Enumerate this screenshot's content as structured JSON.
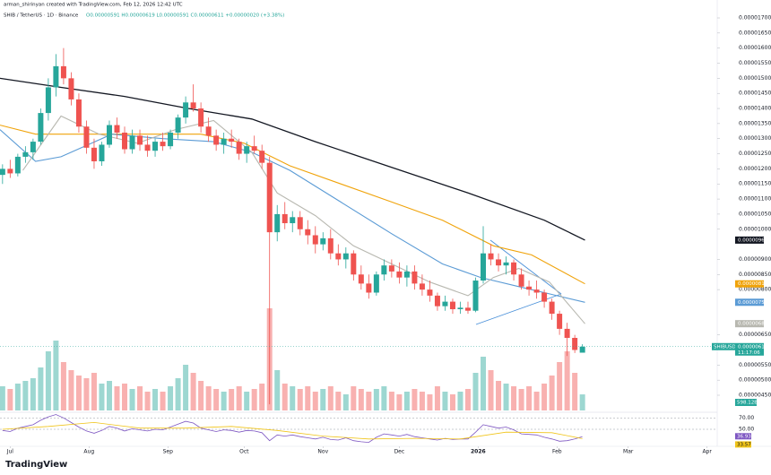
{
  "chart_data": {
    "type": "candlestick",
    "credit": "arman_shirinyan created with TradingView.com, Feb 12, 2026 12:42 UTC",
    "title": "SHIB / TetherUS · 1D · Binance",
    "ohlc": "O0.00000591 H0.00000619 L0.00000591 C0.00000611 +0.00000020 (+3.38%)",
    "brand": "TradingView",
    "symbol_tag": "SHIBUSDT",
    "countdown": "11:17:06",
    "up_color": "#26a69a",
    "down_color": "#ef5350",
    "xlim": [
      -4,
      278
    ],
    "xticks": [
      {
        "value": 0,
        "label": "Jul"
      },
      {
        "value": 31,
        "label": "Aug"
      },
      {
        "value": 62,
        "label": "Sep"
      },
      {
        "value": 92,
        "label": "Oct"
      },
      {
        "value": 123,
        "label": "Nov"
      },
      {
        "value": 153,
        "label": "Dec"
      },
      {
        "value": 184,
        "label": "2026"
      },
      {
        "value": 215,
        "label": "Feb"
      },
      {
        "value": 243,
        "label": "Mar"
      },
      {
        "value": 274,
        "label": "Apr"
      }
    ],
    "ylim": [
      4.5e-06,
      1.7e-05
    ],
    "yticks": [
      {
        "value": 1.7e-05,
        "label": "0.00001700"
      },
      {
        "value": 1.65e-05,
        "label": "0.00001650"
      },
      {
        "value": 1.6e-05,
        "label": "0.00001600"
      },
      {
        "value": 1.55e-05,
        "label": "0.00001550"
      },
      {
        "value": 1.5e-05,
        "label": "0.00001500"
      },
      {
        "value": 1.45e-05,
        "label": "0.00001450"
      },
      {
        "value": 1.4e-05,
        "label": "0.00001400"
      },
      {
        "value": 1.35e-05,
        "label": "0.00001350"
      },
      {
        "value": 1.3e-05,
        "label": "0.00001300"
      },
      {
        "value": 1.25e-05,
        "label": "0.00001250"
      },
      {
        "value": 1.2e-05,
        "label": "0.00001200"
      },
      {
        "value": 1.15e-05,
        "label": "0.00001150"
      },
      {
        "value": 1.1e-05,
        "label": "0.00001100"
      },
      {
        "value": 1.05e-05,
        "label": "0.00001050"
      },
      {
        "value": 1e-05,
        "label": "0.00001000"
      },
      {
        "value": 9e-06,
        "label": "0.00000900"
      },
      {
        "value": 8.5e-06,
        "label": "0.00000850"
      },
      {
        "value": 8e-06,
        "label": "0.00000800"
      },
      {
        "value": 6.5e-06,
        "label": "0.00000650"
      },
      {
        "value": 5.5e-06,
        "label": "0.00000550"
      },
      {
        "value": 5e-06,
        "label": "0.00000500"
      },
      {
        "value": 4.5e-06,
        "label": "0.00000450"
      }
    ],
    "x": [
      -3,
      0,
      3,
      6,
      9,
      12,
      15,
      18,
      21,
      24,
      27,
      30,
      33,
      36,
      39,
      42,
      45,
      48,
      51,
      54,
      57,
      60,
      63,
      66,
      69,
      72,
      75,
      78,
      81,
      84,
      87,
      90,
      93,
      96,
      99,
      102,
      105,
      108,
      111,
      114,
      117,
      120,
      123,
      126,
      129,
      132,
      135,
      138,
      141,
      144,
      147,
      150,
      153,
      156,
      159,
      162,
      165,
      168,
      171,
      174,
      177,
      180,
      183,
      186,
      189,
      192,
      195,
      198,
      201,
      204,
      207,
      210,
      213,
      216,
      219,
      222,
      225
    ],
    "open": [
      1.18e-05,
      1.2e-05,
      1.185e-05,
      1.24e-05,
      1.255e-05,
      1.29e-05,
      1.385e-05,
      1.47e-05,
      1.54e-05,
      1.5e-05,
      1.43e-05,
      1.34e-05,
      1.27e-05,
      1.225e-05,
      1.28e-05,
      1.345e-05,
      1.32e-05,
      1.265e-05,
      1.31e-05,
      1.28e-05,
      1.26e-05,
      1.29e-05,
      1.275e-05,
      1.32e-05,
      1.37e-05,
      1.42e-05,
      1.4e-05,
      1.34e-05,
      1.31e-05,
      1.28e-05,
      1.3e-05,
      1.29e-05,
      1.25e-05,
      1.275e-05,
      1.26e-05,
      1.22e-05,
      9.9e-06,
      1.05e-05,
      1.02e-05,
      1.04e-05,
      1e-05,
      9.8e-06,
      9.5e-06,
      9.7e-06,
      9.2e-06,
      9e-06,
      9.2e-06,
      8.5e-06,
      8.2e-06,
      7.9e-06,
      8.5e-06,
      8.8e-06,
      8.6e-06,
      8.4e-06,
      8.6e-06,
      8.2e-06,
      8e-06,
      7.8e-06,
      7.45e-06,
      7.6e-06,
      7.35e-06,
      7.4e-06,
      7.3e-06,
      8.3e-06,
      9.2e-06,
      9e-06,
      8.8e-06,
      8.9e-06,
      8.5e-06,
      8.1e-06,
      8e-06,
      7.9e-06,
      7.6e-06,
      7.2e-06,
      6.7e-06,
      6.4e-06,
      5.91e-06
    ],
    "high": [
      1.215e-05,
      1.23e-05,
      1.25e-05,
      1.275e-05,
      1.3e-05,
      1.4e-05,
      1.5e-05,
      1.58e-05,
      1.6e-05,
      1.52e-05,
      1.45e-05,
      1.36e-05,
      1.3e-05,
      1.29e-05,
      1.36e-05,
      1.37e-05,
      1.34e-05,
      1.33e-05,
      1.33e-05,
      1.31e-05,
      1.3e-05,
      1.32e-05,
      1.33e-05,
      1.38e-05,
      1.44e-05,
      1.48e-05,
      1.42e-05,
      1.37e-05,
      1.33e-05,
      1.32e-05,
      1.33e-05,
      1.3e-05,
      1.29e-05,
      1.31e-05,
      1.28e-05,
      1.24e-05,
      1.08e-05,
      1.09e-05,
      1.06e-05,
      1.06e-05,
      1.03e-05,
      1.01e-05,
      9.9e-06,
      1e-05,
      9.5e-06,
      9.4e-06,
      9.3e-06,
      8.8e-06,
      8.5e-06,
      8.6e-06,
      9e-06,
      9e-06,
      8.9e-06,
      8.8e-06,
      8.8e-06,
      8.5e-06,
      8.3e-06,
      7.9e-06,
      7.8e-06,
      7.7e-06,
      7.6e-06,
      7.6e-06,
      8.4e-06,
      1.01e-05,
      9.5e-06,
      9.2e-06,
      9.1e-06,
      9e-06,
      8.7e-06,
      8.3e-06,
      8.3e-06,
      8e-06,
      7.7e-06,
      7.3e-06,
      6.9e-06,
      6.5e-06,
      6.19e-06
    ],
    "low": [
      1.15e-05,
      1.17e-05,
      1.175e-05,
      1.22e-05,
      1.23e-05,
      1.28e-05,
      1.36e-05,
      1.44e-05,
      1.48e-05,
      1.41e-05,
      1.32e-05,
      1.25e-05,
      1.2e-05,
      1.21e-05,
      1.27e-05,
      1.3e-05,
      1.25e-05,
      1.25e-05,
      1.26e-05,
      1.24e-05,
      1.24e-05,
      1.26e-05,
      1.265e-05,
      1.3e-05,
      1.35e-05,
      1.39e-05,
      1.32e-05,
      1.29e-05,
      1.26e-05,
      1.25e-05,
      1.27e-05,
      1.23e-05,
      1.22e-05,
      1.25e-05,
      1.2e-05,
      4.2e-06,
      9.6e-06,
      1e-05,
      9.9e-06,
      9.8e-06,
      9.5e-06,
      9.2e-06,
      9.3e-06,
      9e-06,
      8.8e-06,
      8.7e-06,
      8.3e-06,
      8e-06,
      7.7e-06,
      7.8e-06,
      8.3e-06,
      8.4e-06,
      8.2e-06,
      8.1e-06,
      8e-06,
      7.8e-06,
      7.6e-06,
      7.3e-06,
      7.3e-06,
      7.2e-06,
      7.2e-06,
      7.2e-06,
      7.25e-06,
      8.2e-06,
      8.8e-06,
      8.6e-06,
      8.5e-06,
      8.3e-06,
      8e-06,
      7.8e-06,
      7.7e-06,
      7.4e-06,
      7e-06,
      6.5e-06,
      5.8e-06,
      5.9e-06,
      5.91e-06
    ],
    "close": [
      1.2e-05,
      1.185e-05,
      1.24e-05,
      1.255e-05,
      1.29e-05,
      1.385e-05,
      1.47e-05,
      1.54e-05,
      1.5e-05,
      1.43e-05,
      1.34e-05,
      1.27e-05,
      1.225e-05,
      1.28e-05,
      1.345e-05,
      1.32e-05,
      1.265e-05,
      1.31e-05,
      1.28e-05,
      1.26e-05,
      1.29e-05,
      1.275e-05,
      1.32e-05,
      1.37e-05,
      1.42e-05,
      1.4e-05,
      1.34e-05,
      1.31e-05,
      1.28e-05,
      1.3e-05,
      1.29e-05,
      1.25e-05,
      1.275e-05,
      1.26e-05,
      1.22e-05,
      9.9e-06,
      1.05e-05,
      1.02e-05,
      1.04e-05,
      1e-05,
      9.8e-06,
      9.5e-06,
      9.7e-06,
      9.2e-06,
      9e-06,
      9.2e-06,
      8.5e-06,
      8.2e-06,
      7.9e-06,
      8.5e-06,
      8.8e-06,
      8.6e-06,
      8.4e-06,
      8.6e-06,
      8.2e-06,
      8e-06,
      7.8e-06,
      7.45e-06,
      7.6e-06,
      7.35e-06,
      7.4e-06,
      7.3e-06,
      8.3e-06,
      9.2e-06,
      9e-06,
      8.8e-06,
      8.9e-06,
      8.5e-06,
      8.1e-06,
      8e-06,
      7.9e-06,
      7.6e-06,
      7.2e-06,
      6.7e-06,
      6.4e-06,
      6e-06,
      6.11e-06
    ],
    "series": [
      {
        "color": "#131722",
        "x": [
          -4,
          20,
          45,
          70,
          95,
          120,
          150,
          180,
          210,
          226
        ],
        "values": [
          1.5e-05,
          1.47e-05,
          1.44e-05,
          1.4e-05,
          1.365e-05,
          1.29e-05,
          1.205e-05,
          1.12e-05,
          1.03e-05,
          9.64e-06
        ]
      },
      {
        "color": "#f0a30a",
        "x": [
          -4,
          10,
          40,
          75,
          92,
          110,
          130,
          150,
          170,
          190,
          205,
          226
        ],
        "values": [
          1.345e-05,
          1.315e-05,
          1.315e-05,
          1.315e-05,
          1.285e-05,
          1.21e-05,
          1.15e-05,
          1.09e-05,
          1.03e-05,
          9.45e-06,
          9.15e-06,
          8.19e-06
        ]
      },
      {
        "color": "#5b9bd5",
        "x": [
          -4,
          10,
          20,
          40,
          60,
          80,
          95,
          110,
          130,
          150,
          170,
          185,
          200,
          215,
          226
        ],
        "values": [
          1.33e-05,
          1.225e-05,
          1.24e-05,
          1.315e-05,
          1.3e-05,
          1.29e-05,
          1.255e-05,
          1.195e-05,
          1.09e-05,
          9.85e-06,
          8.85e-06,
          8.4e-06,
          8.1e-06,
          7.8e-06,
          7.58e-06
        ]
      },
      {
        "color": "#b8b8b0",
        "x": [
          5,
          20,
          35,
          50,
          65,
          80,
          95,
          105,
          120,
          135,
          150,
          165,
          180,
          190,
          200,
          212,
          226
        ],
        "values": [
          1.195e-05,
          1.375e-05,
          1.315e-05,
          1.285e-05,
          1.33e-05,
          1.36e-05,
          1.255e-05,
          1.12e-05,
          1.045e-05,
          9.45e-06,
          8.85e-06,
          8.25e-06,
          7.8e-06,
          8.4e-06,
          8.7e-06,
          8.25e-06,
          6.87e-06
        ]
      }
    ],
    "volume": {
      "ylim": [
        0,
        4000
      ],
      "last_value_label": "598.12B",
      "values": [
        900,
        800,
        1000,
        1100,
        1200,
        1600,
        2200,
        2600,
        1800,
        1500,
        1300,
        1200,
        1400,
        1000,
        1100,
        900,
        1000,
        800,
        900,
        700,
        800,
        700,
        900,
        1200,
        1700,
        1400,
        1100,
        900,
        800,
        700,
        800,
        900,
        700,
        800,
        1000,
        3800,
        1500,
        1000,
        900,
        800,
        900,
        700,
        800,
        900,
        700,
        600,
        900,
        800,
        700,
        800,
        900,
        700,
        600,
        700,
        800,
        700,
        600,
        900,
        700,
        600,
        700,
        800,
        1400,
        2000,
        1500,
        1100,
        1000,
        900,
        800,
        900,
        700,
        1000,
        1300,
        1800,
        2200,
        1400,
        598.12
      ]
    },
    "rsi": {
      "color": "#7e57c2",
      "ylim": [
        20,
        80
      ],
      "yticks": [
        {
          "value": 70,
          "label": "70.00"
        },
        {
          "value": 50,
          "label": "50.00"
        }
      ],
      "values": [
        48,
        46,
        52,
        55,
        58,
        66,
        72,
        76,
        70,
        62,
        54,
        47,
        43,
        48,
        55,
        52,
        47,
        51,
        49,
        47,
        50,
        49,
        54,
        59,
        64,
        61,
        52,
        49,
        46,
        49,
        48,
        45,
        48,
        47,
        44,
        30,
        40,
        38,
        40,
        37,
        35,
        33,
        36,
        32,
        31,
        35,
        30,
        28,
        27,
        36,
        42,
        40,
        38,
        41,
        37,
        35,
        33,
        31,
        34,
        32,
        33,
        33,
        45,
        58,
        55,
        52,
        54,
        49,
        42,
        41,
        40,
        36,
        33,
        29,
        30,
        33,
        36.93
      ],
      "ma": {
        "color": "#f0c419",
        "x": [
          -3,
          15,
          33,
          51,
          69,
          87,
          105,
          123,
          141,
          159,
          177,
          195,
          213,
          225
        ],
        "values": [
          50,
          55,
          62,
          52,
          52,
          55,
          48,
          38,
          33,
          34,
          33,
          45,
          44,
          33.57
        ]
      }
    }
  }
}
